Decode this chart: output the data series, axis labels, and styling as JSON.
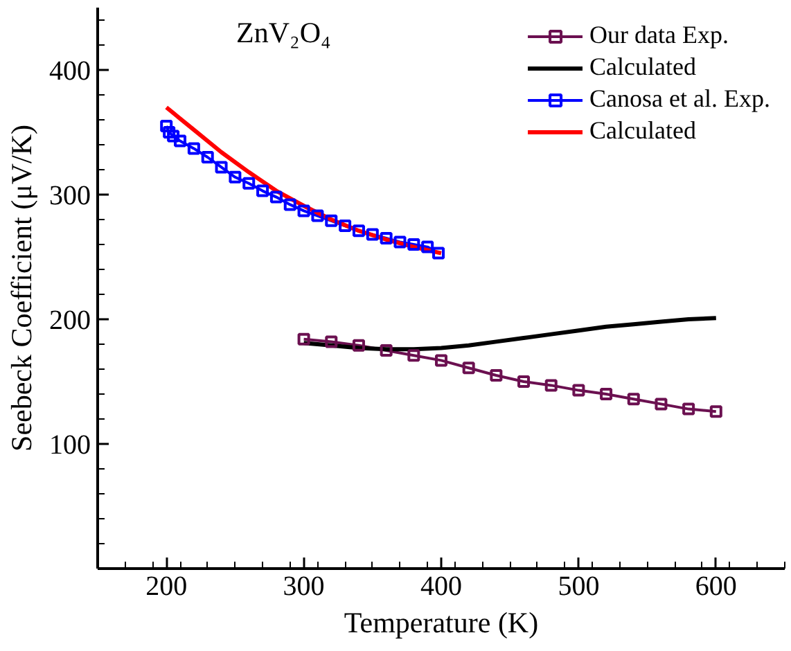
{
  "chart_data": {
    "type": "line",
    "xlabel": "Temperature (K)",
    "ylabel": "Seebeck Coefficient (μV/K)",
    "xlim": [
      150,
      650
    ],
    "ylim": [
      0,
      450
    ],
    "xticks": [
      200,
      300,
      400,
      500,
      600
    ],
    "yticks": [
      100,
      200,
      300,
      400
    ],
    "grid": false,
    "legend": "top right",
    "line_style": "solid",
    "annotations": [
      "ZnV₂O₄"
    ],
    "series": [
      {
        "name": "Our data Exp.",
        "color": "#6b1050",
        "marker": "square",
        "x": [
          300,
          320,
          340,
          360,
          380,
          400,
          420,
          440,
          460,
          480,
          500,
          520,
          540,
          560,
          580,
          600
        ],
        "values": [
          184,
          182,
          179,
          175,
          171,
          167,
          161,
          155,
          150,
          147,
          143,
          140,
          136,
          132,
          128,
          126
        ]
      },
      {
        "name": "Calculated",
        "color": "#000000",
        "marker": "none",
        "x": [
          300,
          320,
          340,
          360,
          380,
          400,
          420,
          440,
          460,
          480,
          500,
          520,
          540,
          560,
          580,
          600
        ],
        "values": [
          181,
          179,
          177,
          176,
          176,
          177,
          179,
          182,
          185,
          188,
          191,
          194,
          196,
          198,
          200,
          201
        ]
      },
      {
        "name": "Canosa et al. Exp.",
        "color": "#0000ff",
        "marker": "square",
        "x": [
          200,
          202,
          205,
          210,
          220,
          230,
          240,
          250,
          260,
          270,
          280,
          290,
          300,
          310,
          320,
          330,
          340,
          350,
          360,
          370,
          380,
          390,
          398
        ],
        "values": [
          355,
          350,
          347,
          343,
          337,
          330,
          322,
          314,
          309,
          303,
          298,
          292,
          287,
          283,
          279,
          275,
          271,
          268,
          265,
          262,
          260,
          258,
          253
        ]
      },
      {
        "name": "Calculated",
        "color": "#ff0000",
        "marker": "none",
        "x": [
          200,
          220,
          240,
          260,
          280,
          300,
          320,
          340,
          360,
          380,
          400
        ],
        "values": [
          370,
          352,
          334,
          318,
          303,
          291,
          280,
          271,
          264,
          258,
          253
        ]
      }
    ]
  }
}
